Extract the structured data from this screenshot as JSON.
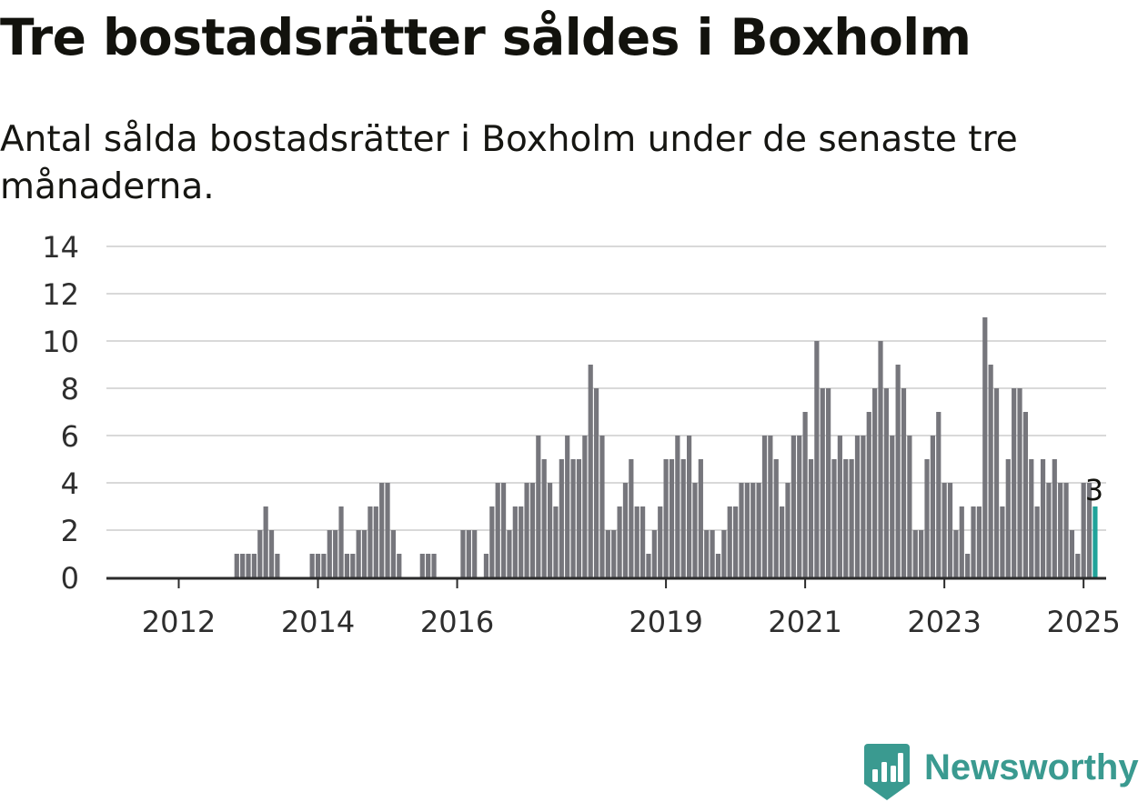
{
  "title": "Tre bostadsrätter såldes i Boxholm",
  "subtitle": "Antal sålda bostadsrätter i Boxholm under de senaste tre månaderna.",
  "logo": {
    "text": "Newsworthy",
    "icon": "bar-chart-badge-icon",
    "color": "#3a9a90"
  },
  "chart_data": {
    "type": "bar",
    "title": "Tre bostadsrätter såldes i Boxholm",
    "xlabel": "",
    "ylabel": "",
    "ylim": [
      0,
      14
    ],
    "yticks": [
      0,
      2,
      4,
      6,
      8,
      10,
      12,
      14
    ],
    "grid": true,
    "legend": "none",
    "xtick_labels": [
      "2012",
      "2014",
      "2016",
      "2019",
      "2021",
      "2023",
      "2025"
    ],
    "period": "monthly, Jan 2011 – Jan 2025",
    "bar_color": "#76767c",
    "highlight_color": "#21a39a",
    "highlight_label": "3",
    "values": [
      0,
      0,
      0,
      0,
      0,
      0,
      0,
      0,
      0,
      0,
      0,
      0,
      0,
      0,
      0,
      0,
      0,
      0,
      0,
      0,
      0,
      0,
      1,
      1,
      1,
      1,
      2,
      3,
      2,
      1,
      0,
      0,
      0,
      0,
      0,
      1,
      1,
      1,
      2,
      2,
      3,
      1,
      1,
      2,
      2,
      3,
      3,
      4,
      4,
      2,
      1,
      0,
      0,
      0,
      1,
      1,
      1,
      0,
      0,
      0,
      0,
      2,
      2,
      2,
      0,
      1,
      3,
      4,
      4,
      2,
      3,
      3,
      4,
      4,
      6,
      5,
      4,
      3,
      5,
      6,
      5,
      5,
      6,
      9,
      8,
      6,
      2,
      2,
      3,
      4,
      5,
      3,
      3,
      1,
      2,
      3,
      5,
      5,
      6,
      5,
      6,
      4,
      5,
      2,
      2,
      1,
      2,
      3,
      3,
      4,
      4,
      4,
      4,
      6,
      6,
      5,
      3,
      4,
      6,
      6,
      7,
      5,
      10,
      8,
      8,
      5,
      6,
      5,
      5,
      6,
      6,
      7,
      8,
      10,
      8,
      6,
      9,
      8,
      6,
      2,
      2,
      5,
      6,
      7,
      4,
      4,
      2,
      3,
      1,
      3,
      3,
      11,
      9,
      8,
      3,
      5,
      8,
      8,
      7,
      5,
      3,
      5,
      4,
      5,
      4,
      4,
      2,
      1,
      4,
      4,
      3
    ]
  }
}
